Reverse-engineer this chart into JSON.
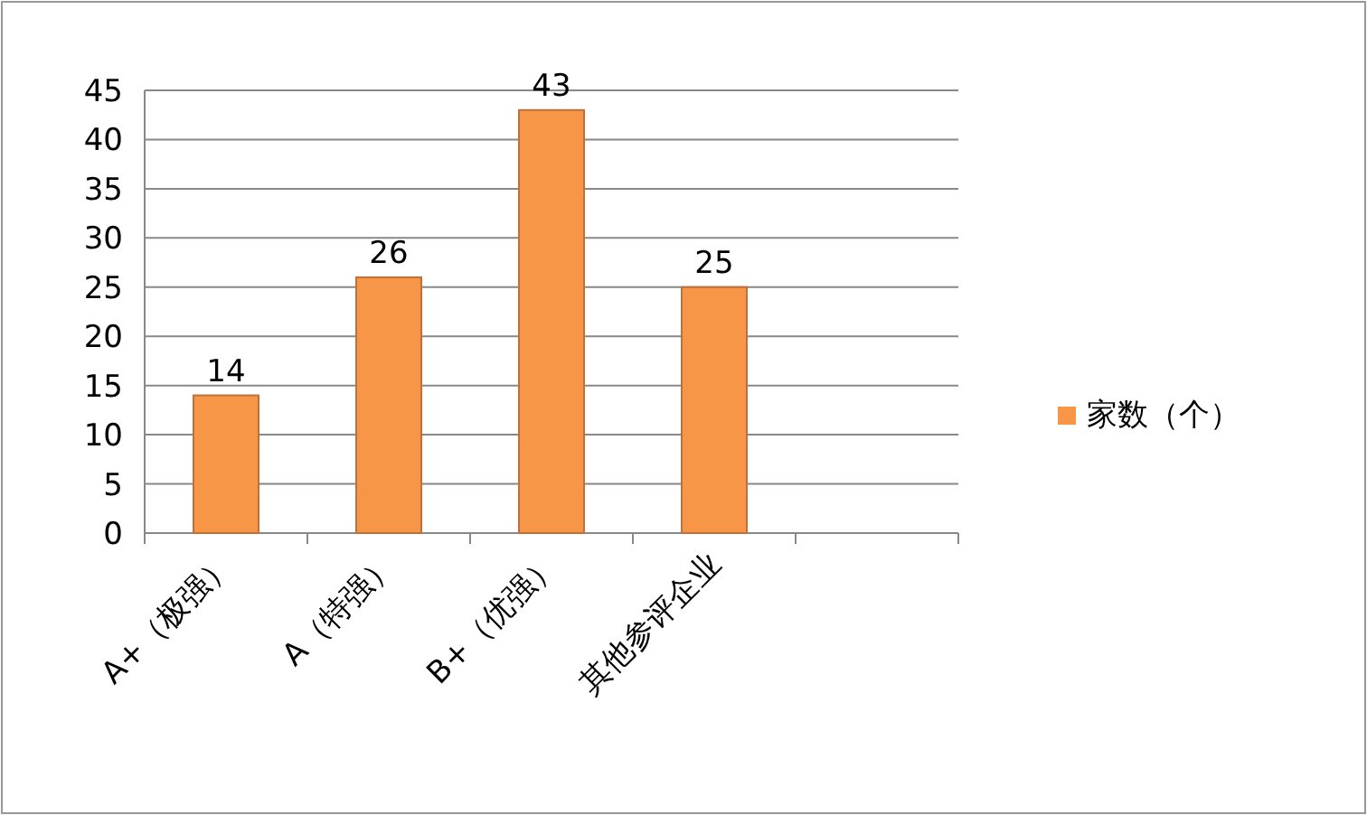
{
  "chart_data": {
    "type": "bar",
    "categories": [
      "A+（极强）",
      "A（特强）",
      "B+（优强）",
      "其他参评企业",
      null
    ],
    "series": [
      {
        "name": "家数（个）",
        "color": "#f79646",
        "values": [
          14,
          26,
          43,
          25,
          null
        ]
      }
    ],
    "ylim": [
      0,
      45
    ],
    "yticks": [
      0,
      5,
      10,
      15,
      20,
      25,
      30,
      35,
      40,
      45
    ],
    "grid": "y",
    "legend": "right",
    "data_labels": true
  }
}
